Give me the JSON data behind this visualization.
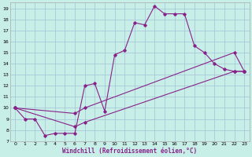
{
  "xlabel": "Windchill (Refroidissement éolien,°C)",
  "bg_color": "#c8eee8",
  "grid_color": "#a8c8d8",
  "line_color": "#882288",
  "xlim": [
    -0.5,
    23.5
  ],
  "ylim": [
    7,
    19.5
  ],
  "xticks": [
    0,
    1,
    2,
    3,
    4,
    5,
    6,
    7,
    8,
    9,
    10,
    11,
    12,
    13,
    14,
    15,
    16,
    17,
    18,
    19,
    20,
    21,
    22,
    23
  ],
  "yticks": [
    7,
    8,
    9,
    10,
    11,
    12,
    13,
    14,
    15,
    16,
    17,
    18,
    19
  ],
  "series1_x": [
    0,
    1,
    2,
    3,
    4,
    5,
    6,
    7,
    8,
    9,
    10,
    11,
    12,
    13,
    14,
    15,
    16,
    17,
    18,
    19,
    20,
    21,
    22,
    23
  ],
  "series1_y": [
    10.0,
    9.0,
    9.0,
    7.5,
    7.7,
    7.7,
    7.7,
    12.0,
    12.2,
    9.7,
    14.8,
    15.2,
    17.7,
    17.5,
    19.2,
    18.5,
    18.5,
    18.5,
    15.6,
    15.0,
    14.0,
    13.5,
    13.3,
    13.3
  ],
  "series2_x": [
    0,
    6,
    7,
    22,
    23
  ],
  "series2_y": [
    10.0,
    9.5,
    10.0,
    15.0,
    13.3
  ],
  "series3_x": [
    0,
    6,
    7,
    22,
    23
  ],
  "series3_y": [
    10.0,
    8.3,
    8.7,
    13.3,
    13.3
  ]
}
